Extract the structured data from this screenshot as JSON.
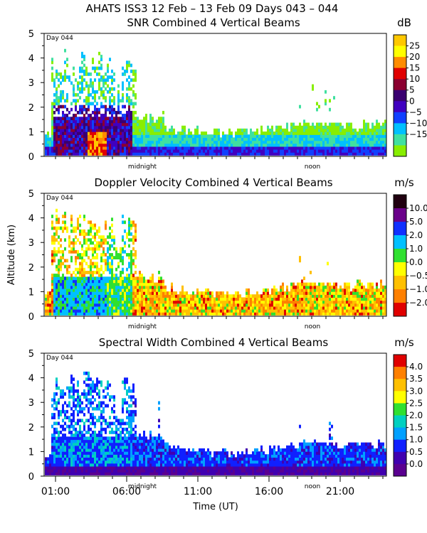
{
  "header": {
    "title": "AHATS ISS3  12 Feb – 13 Feb 09 Days 043 – 044"
  },
  "panels_common": {
    "day_label": "Day 044",
    "midnight_label": "midnight",
    "noon_label": "noon"
  },
  "chart_data": [
    {
      "type": "heatmap",
      "title": "SNR Combined 4 Vertical Beams",
      "ylabel": "",
      "ylim": [
        0,
        5
      ],
      "yticks": [
        "0",
        "1",
        "2",
        "3",
        "4",
        "5"
      ],
      "colorbar": {
        "unit": "dB",
        "labels": [
          "25",
          "20",
          "15",
          "10",
          "5",
          "0",
          "−5",
          "−10",
          "−15"
        ],
        "colors": [
          "#ffc800",
          "#ffff00",
          "#ff8c00",
          "#e00000",
          "#8b0030",
          "#3a0070",
          "#4000c0",
          "#1040ff",
          "#00c0ff",
          "#40e0a0",
          "#88ee00"
        ]
      }
    },
    {
      "type": "heatmap",
      "title": "Doppler Velocity Combined 4 Vertical Beams",
      "ylabel": "Altitude (km)",
      "ylim": [
        0,
        5
      ],
      "yticks": [
        "0",
        "1",
        "2",
        "3",
        "4",
        "5"
      ],
      "colorbar": {
        "unit": "m/s",
        "labels": [
          "10.0",
          "5.0",
          "2.0",
          "1.0",
          "0.0",
          "−0.5",
          "−1.0",
          "−2.0"
        ],
        "colors": [
          "#200010",
          "#6a008a",
          "#1030ff",
          "#00c0ff",
          "#30e030",
          "#ffff00",
          "#ffc000",
          "#ff8000",
          "#e00000"
        ]
      }
    },
    {
      "type": "heatmap",
      "title": "Spectral Width Combined 4 Vertical Beams",
      "ylabel": "",
      "xlabel": "Time (UT)",
      "ylim": [
        0,
        5
      ],
      "yticks": [
        "0",
        "1",
        "2",
        "3",
        "4",
        "5"
      ],
      "xticks": [
        "01:00",
        "06:00",
        "11:00",
        "16:00",
        "21:00"
      ],
      "colorbar": {
        "unit": "m/s",
        "labels": [
          "4.0",
          "3.5",
          "3.0",
          "2.5",
          "2.0",
          "1.5",
          "1.0",
          "0.5",
          "0.0"
        ],
        "colors": [
          "#e00000",
          "#ff8000",
          "#ffc000",
          "#ffff00",
          "#30e030",
          "#00d0c0",
          "#00a0ff",
          "#1020ff",
          "#4000b0",
          "#5a0090"
        ]
      }
    }
  ]
}
